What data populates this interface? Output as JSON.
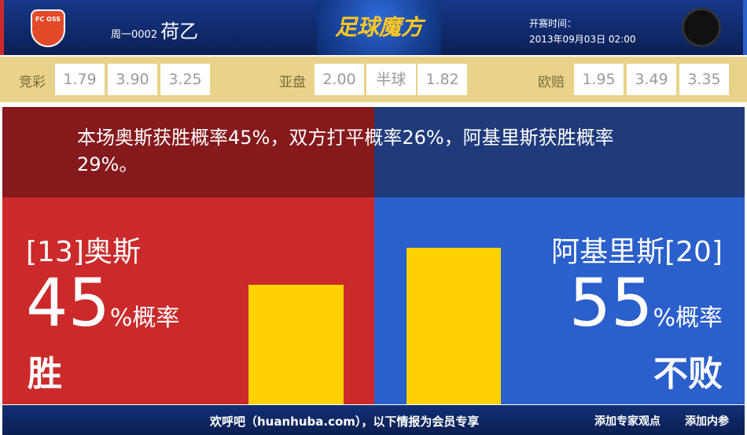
{
  "header": {
    "home_logo_text": "FC OSS",
    "match_no": "周一0002",
    "league": "荷乙",
    "brand": "足球魔方",
    "time_label": "开赛时间：",
    "time_value": "2013年09月03日 02:00"
  },
  "odds": {
    "jingcai": {
      "label": "竞彩",
      "values": [
        "1.79",
        "3.90",
        "3.25"
      ]
    },
    "yapan": {
      "label": "亚盘",
      "values": [
        "2.00",
        "半球",
        "1.82"
      ]
    },
    "oupei": {
      "label": "欧赔",
      "values": [
        "1.95",
        "3.49",
        "3.35"
      ]
    }
  },
  "summary": "本场奥斯获胜概率45%，双方打平概率26%，阿基里斯获胜概率29%。",
  "home": {
    "team": "[13]奥斯",
    "percent": 45,
    "percent_text": "45",
    "suffix": "%概率",
    "result": "胜",
    "color": "#cc2a2a"
  },
  "away": {
    "team": "阿基里斯[20]",
    "percent": 55,
    "percent_text": "55",
    "suffix": "%概率",
    "result": "不败",
    "color": "#2a5fcc"
  },
  "bar_color": "#ffd200",
  "footer": {
    "welcome": "欢呼吧（huanhuba.com），以下情报为会员专享",
    "add_expert": "添加专家观点",
    "add_inside": "添加内参"
  }
}
